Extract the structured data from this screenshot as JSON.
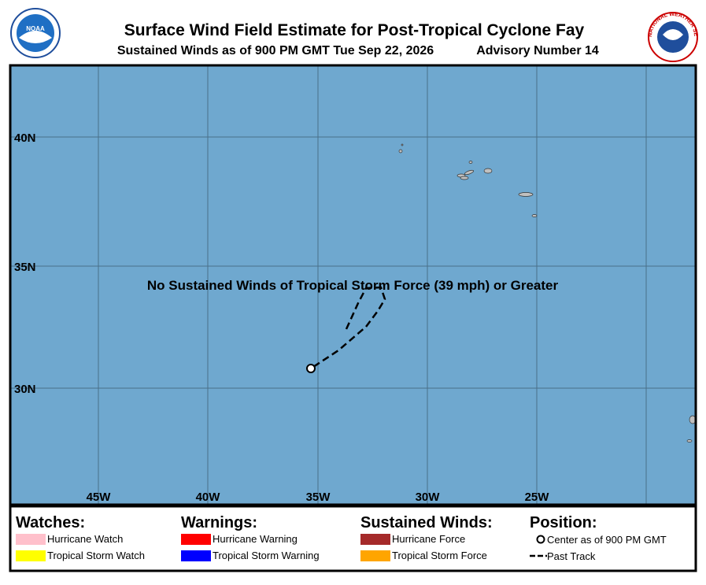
{
  "header": {
    "title": "Surface Wind Field Estimate for Post-Tropical Cyclone Fay",
    "subtitle": "Sustained Winds as of 900 PM GMT Tue Sep 22, 2026",
    "advisory": "Advisory Number 14",
    "noaa_logo": "NOAA",
    "nws_logo": "NATIONAL WEATHER SERVICE"
  },
  "map": {
    "lat_labels": [
      "40N",
      "35N",
      "30N"
    ],
    "lon_labels": [
      "45W",
      "40W",
      "35W",
      "30W",
      "25W"
    ],
    "note": "No Sustained Winds of Tropical Storm Force (39 mph) or Greater"
  },
  "legend": {
    "watches": {
      "title": "Watches:",
      "items": [
        {
          "label": "Hurricane Watch",
          "color": "#ffc0cb"
        },
        {
          "label": "Tropical Storm Watch",
          "color": "#ffff00"
        }
      ]
    },
    "warnings": {
      "title": "Warnings:",
      "items": [
        {
          "label": "Hurricane Warning",
          "color": "#ff0000"
        },
        {
          "label": "Tropical Storm Warning",
          "color": "#0000ff"
        }
      ]
    },
    "winds": {
      "title": "Sustained Winds:",
      "items": [
        {
          "label": "Hurricane Force",
          "color": "#a52a2a"
        },
        {
          "label": "Tropical Storm Force",
          "color": "#ffa500"
        }
      ]
    },
    "position": {
      "title": "Position:",
      "items": [
        {
          "label": "Center as of 900 PM GMT"
        },
        {
          "label": "Past Track"
        }
      ]
    }
  }
}
